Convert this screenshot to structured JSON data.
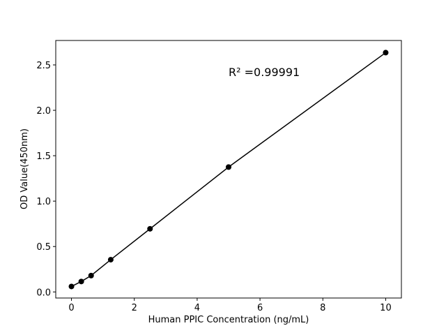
{
  "chart_data": {
    "type": "line",
    "x_label": "Human PPIC Concentration (ng/mL)",
    "y_label": "OD Value(450nm)",
    "annotation": "R² =0.99991",
    "x": [
      0,
      0.3125,
      0.625,
      1.25,
      2.5,
      5,
      10
    ],
    "series": [
      {
        "color": "#000000",
        "values": [
          0.06,
          0.115,
          0.18,
          0.355,
          0.695,
          1.375,
          2.635
        ]
      }
    ],
    "xlim": [
      -0.5,
      10.5
    ],
    "xticks": [
      0,
      2,
      4,
      6,
      8,
      10
    ],
    "ylim": [
      -0.067,
      2.769
    ],
    "yticks": [
      {
        "value": 0,
        "label": "0.0"
      },
      0.5,
      {
        "value": 1,
        "label": "1.0"
      },
      1.5,
      {
        "value": 2,
        "label": "2.0"
      },
      2.5
    ]
  }
}
